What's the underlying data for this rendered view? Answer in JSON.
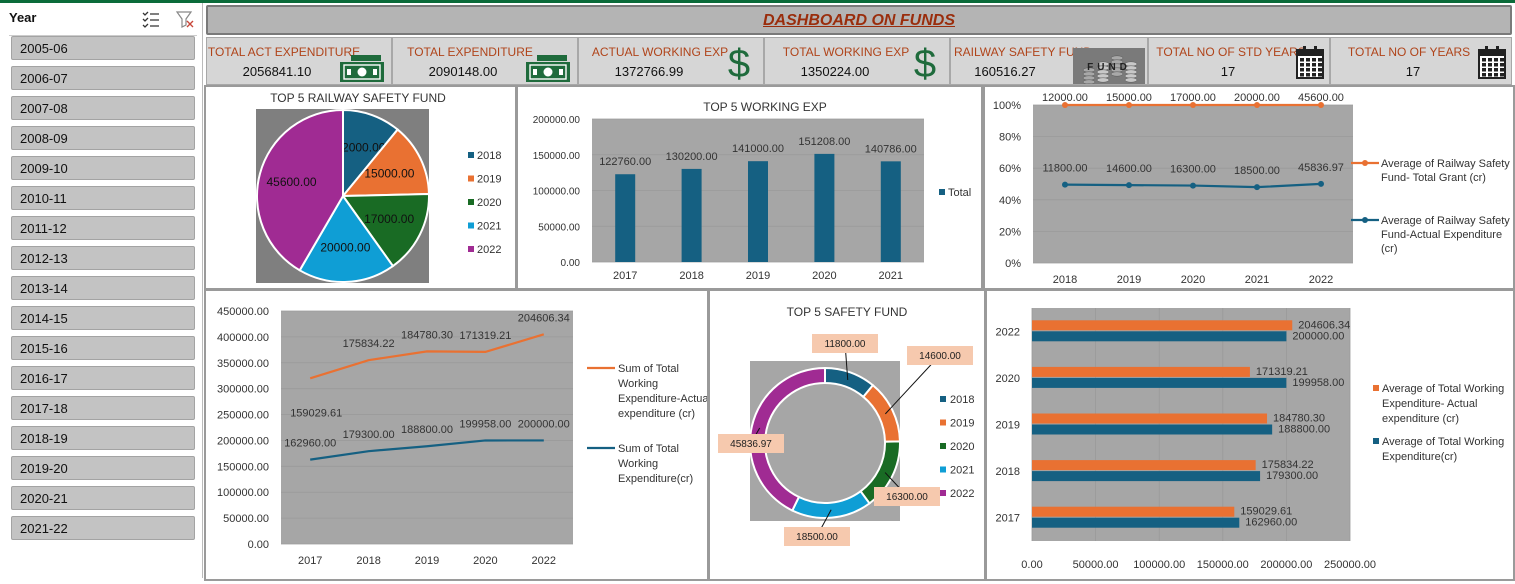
{
  "slicer": {
    "title": "Year",
    "icons": [
      "multi-select-icon",
      "clear-filter-icon"
    ],
    "items": [
      "2005-06",
      "2006-07",
      "2007-08",
      "2008-09",
      "2009-10",
      "2010-11",
      "2011-12",
      "2012-13",
      "2013-14",
      "2014-15",
      "2015-16",
      "2016-17",
      "2017-18",
      "2018-19",
      "2019-20",
      "2020-21",
      "2021-22"
    ]
  },
  "dashboard": {
    "title": "DASHBOARD ON FUNDS"
  },
  "kpis": [
    {
      "label": "TOTAL ACT  EXPENDITURE",
      "value": "2056841.10",
      "icon": "cash-icon"
    },
    {
      "label": "TOTAL EXPENDITURE",
      "value": "2090148.00",
      "icon": "cash-icon"
    },
    {
      "label": "ACTUAL WORKING EXP",
      "value": "1372766.99",
      "icon": "dollar-icon"
    },
    {
      "label": "TOTAL WORKING EXP",
      "value": "1350224.00",
      "icon": "dollar-icon"
    },
    {
      "label": "RAILWAY SAFETY FUND",
      "value": "160516.27",
      "icon": "fund-coins-icon",
      "icon_text": "FUND"
    },
    {
      "label": "TOTAL NO OF  STD YEARS",
      "value": "17",
      "icon": "calendar-icon"
    },
    {
      "label": "TOTAL NO OF YEARS",
      "value": "17",
      "icon": "calendar-icon"
    }
  ],
  "colors": {
    "c2018": "#156082",
    "c2019": "#e97132",
    "c2020": "#196b24",
    "c2021": "#0f9ed5",
    "c2022": "#a02b93",
    "plot_bg": "#a6a6a6",
    "orange": "#e97132",
    "blue": "#156082"
  },
  "chart_data": [
    {
      "id": "pie",
      "type": "pie",
      "title": "TOP 5 RAILWAY SAFETY FUND",
      "categories": [
        "2018",
        "2019",
        "2020",
        "2021",
        "2022"
      ],
      "values": [
        12000.0,
        15000.0,
        17000.0,
        20000.0,
        45600.0
      ],
      "labels": [
        "12000.00",
        "15000.00",
        "17000.00",
        "20000.00",
        "45600.00"
      ],
      "legend": "right"
    },
    {
      "id": "bar",
      "type": "bar",
      "title": "TOP 5 WORKING EXP",
      "categories": [
        "2017",
        "2018",
        "2019",
        "2020",
        "2021"
      ],
      "series": [
        {
          "name": "Total",
          "values": [
            122760.0,
            130200.0,
            141000.0,
            151208.0,
            140786.0
          ]
        }
      ],
      "labels": [
        "122760.00",
        "130200.00",
        "141000.00",
        "151208.00",
        "140786.00"
      ],
      "ylim": [
        0,
        200000
      ],
      "yticks": [
        0,
        50000,
        100000,
        150000,
        200000
      ],
      "ytick_labels": [
        "0.00",
        "50000.00",
        "100000.00",
        "150000.00",
        "200000.00"
      ],
      "legend": "right"
    },
    {
      "id": "pct",
      "type": "line",
      "title": "",
      "categories": [
        "2018",
        "2019",
        "2020",
        "2021",
        "2022"
      ],
      "series": [
        {
          "name": "Average of Railway Safety Fund- Total Grant (cr)",
          "values": [
            12000.0,
            15000.0,
            17000.0,
            20000.0,
            45600.0
          ],
          "labels": [
            "12000.00",
            "15000.00",
            "17000.00",
            "20000.00",
            "45600.00"
          ],
          "share": [
            1.0,
            1.0,
            1.0,
            1.0,
            1.0
          ]
        },
        {
          "name": "Average of Railway Safety Fund-Actual Expenditure (cr)",
          "values": [
            11800.0,
            14600.0,
            16300.0,
            18500.0,
            45836.97
          ],
          "labels": [
            "11800.00",
            "14600.00",
            "16300.00",
            "18500.00",
            "45836.97"
          ],
          "share": [
            0.496,
            0.493,
            0.49,
            0.48,
            0.501
          ]
        }
      ],
      "ylim": [
        0,
        1
      ],
      "yticks": [
        0,
        0.2,
        0.4,
        0.6,
        0.8,
        1
      ],
      "ytick_labels": [
        "0%",
        "20%",
        "40%",
        "60%",
        "80%",
        "100%"
      ],
      "legend": "right"
    },
    {
      "id": "line",
      "type": "line",
      "title": "",
      "categories": [
        "2017",
        "2018",
        "2019",
        "2020",
        "2022"
      ],
      "series": [
        {
          "name": "Sum of Total Working Expenditure-Actual expenditure (cr)",
          "values": [
            159029.61,
            175834.22,
            184780.3,
            171319.21,
            204606.34
          ],
          "labels": [
            "159029.61",
            "175834.22",
            "184780.30",
            "171319.21",
            "204606.34"
          ],
          "plotted": [
            320000,
            355000,
            372000,
            371000,
            405000
          ]
        },
        {
          "name": "Sum of Total Working Expenditure(cr)",
          "values": [
            162960.0,
            179300.0,
            188800.0,
            199958.0,
            200000.0
          ],
          "labels": [
            "162960.00",
            "179300.00",
            "188800.00",
            "199958.00",
            "200000.00"
          ],
          "plotted": [
            162960,
            179300,
            188800,
            199958,
            200000
          ]
        }
      ],
      "ylim": [
        0,
        450000
      ],
      "yticks": [
        0,
        50000,
        100000,
        150000,
        200000,
        250000,
        300000,
        350000,
        400000,
        450000
      ],
      "ytick_labels": [
        "0.00",
        "50000.00",
        "100000.00",
        "150000.00",
        "200000.00",
        "250000.00",
        "300000.00",
        "350000.00",
        "400000.00",
        "450000.00"
      ],
      "legend": "right"
    },
    {
      "id": "donut",
      "type": "pie",
      "title": "TOP 5 SAFETY FUND",
      "categories": [
        "2018",
        "2019",
        "2020",
        "2021",
        "2022"
      ],
      "values": [
        11800.0,
        14600.0,
        16300.0,
        18500.0,
        45836.97
      ],
      "labels": [
        "11800.00",
        "14600.00",
        "16300.00",
        "18500.00",
        "45836.97"
      ],
      "legend": "right"
    },
    {
      "id": "hbar",
      "type": "bar",
      "title": "",
      "categories": [
        "2017",
        "2018",
        "2019",
        "2020",
        "2022"
      ],
      "series": [
        {
          "name": "Average of Total Working Expenditure- Actual expenditure (cr)",
          "values": [
            159029.61,
            175834.22,
            184780.3,
            171319.21,
            204606.34
          ],
          "labels": [
            "159029.61",
            "175834.22",
            "184780.30",
            "171319.21",
            "204606.34"
          ]
        },
        {
          "name": "Average of Total Working Expenditure(cr)",
          "values": [
            162960.0,
            179300.0,
            188800.0,
            199958.0,
            200000.0
          ],
          "labels": [
            "162960.00",
            "179300.00",
            "188800.00",
            "199958.00",
            "200000.00"
          ]
        }
      ],
      "xlim": [
        0,
        250000
      ],
      "xticks": [
        0,
        50000,
        100000,
        150000,
        200000,
        250000
      ],
      "xtick_labels": [
        "0.00",
        "50000.00",
        "100000.00",
        "150000.00",
        "200000.00",
        "250000.00"
      ],
      "legend": "right"
    }
  ]
}
